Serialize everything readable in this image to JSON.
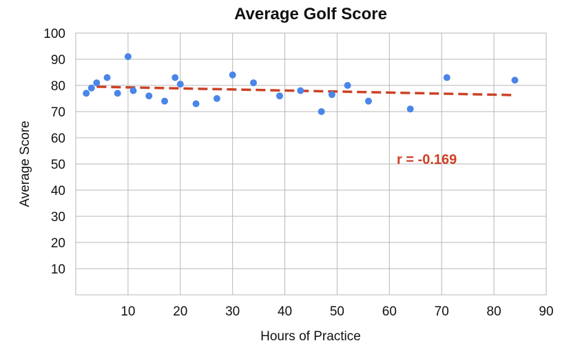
{
  "chart_data": {
    "type": "scatter",
    "title": "Average Golf Score",
    "xlabel": "Hours of Practice",
    "ylabel": "Average Score",
    "xlim": [
      0,
      90
    ],
    "ylim": [
      0,
      100
    ],
    "x_ticks": [
      10,
      20,
      30,
      40,
      50,
      60,
      70,
      80,
      90
    ],
    "y_ticks": [
      10,
      20,
      30,
      40,
      50,
      60,
      70,
      80,
      90,
      100
    ],
    "grid": true,
    "series": [
      {
        "points": [
          [
            2,
            77
          ],
          [
            3,
            79
          ],
          [
            4,
            81
          ],
          [
            6,
            83
          ],
          [
            8,
            77
          ],
          [
            10,
            91
          ],
          [
            11,
            78
          ],
          [
            14,
            76
          ],
          [
            17,
            74
          ],
          [
            19,
            83
          ],
          [
            20,
            80.5
          ],
          [
            23,
            73
          ],
          [
            27,
            75
          ],
          [
            30,
            84
          ],
          [
            34,
            81
          ],
          [
            39,
            76
          ],
          [
            43,
            78
          ],
          [
            47,
            70
          ],
          [
            49,
            76.5
          ],
          [
            52,
            80
          ],
          [
            56,
            74
          ],
          [
            64,
            71
          ],
          [
            71,
            83
          ],
          [
            84,
            82
          ]
        ],
        "color": "#4a86e8"
      }
    ],
    "trendline": {
      "x": [
        4,
        84
      ],
      "y": [
        79.5,
        76.3
      ],
      "color": "#cc4125",
      "style": "dashed"
    },
    "annotation": {
      "text": "r = -0.169",
      "color": "#cc4125"
    }
  }
}
